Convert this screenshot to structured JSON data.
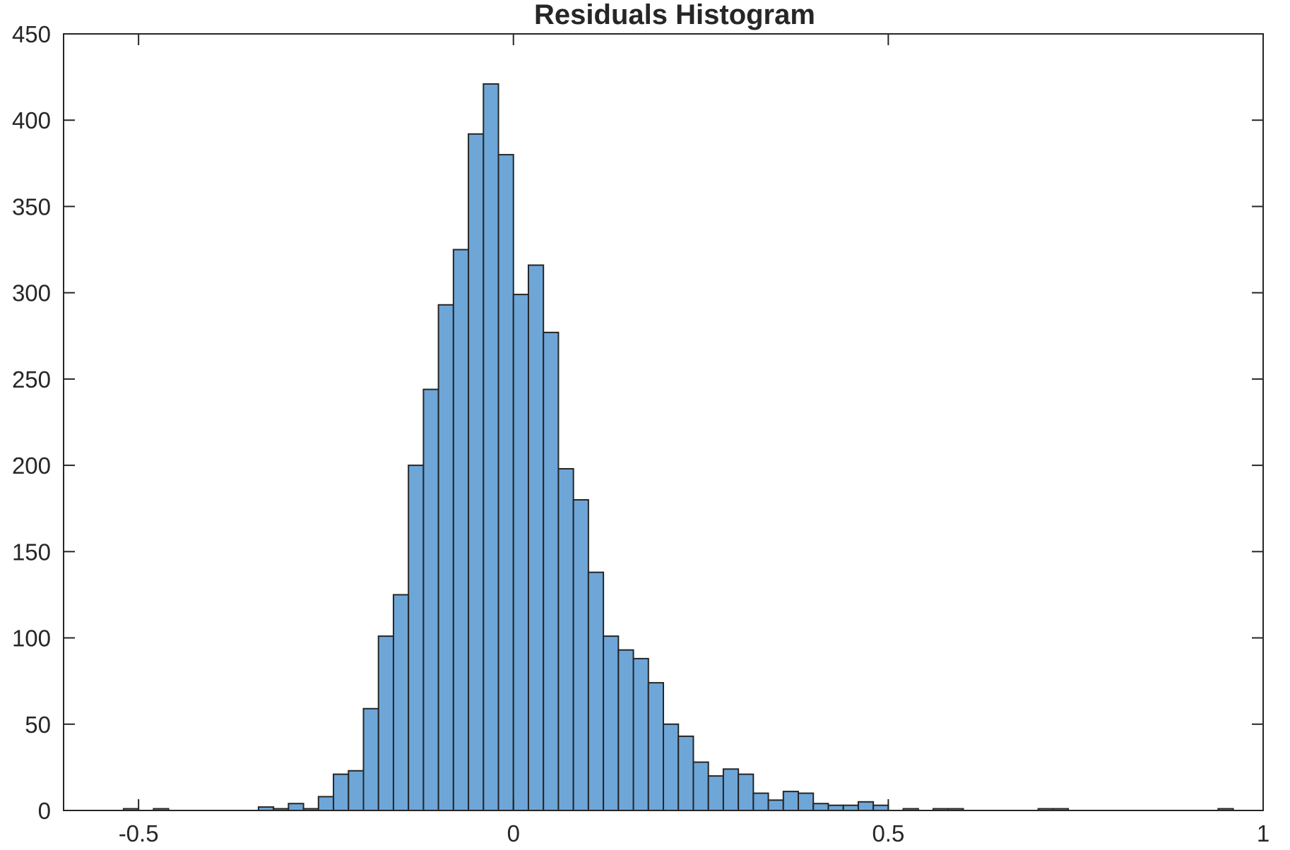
{
  "chart_data": {
    "type": "bar",
    "title": "Residuals Histogram",
    "xlabel": "",
    "ylabel": "",
    "xlim": [
      -0.6,
      1.0
    ],
    "ylim": [
      0,
      450
    ],
    "xticks": [
      -0.5,
      0,
      0.5,
      1
    ],
    "xtick_labels": [
      "-0.5",
      "0",
      "0.5",
      "1"
    ],
    "yticks": [
      0,
      50,
      100,
      150,
      200,
      250,
      300,
      350,
      400,
      450
    ],
    "ytick_labels": [
      "0",
      "50",
      "100",
      "150",
      "200",
      "250",
      "300",
      "350",
      "400",
      "450"
    ],
    "grid": false,
    "bar_color": "#6ea6d8",
    "edge_color": "#262626",
    "bin_width": 0.02,
    "bins": [
      {
        "x0": -0.52,
        "count": 1
      },
      {
        "x0": -0.48,
        "count": 1
      },
      {
        "x0": -0.34,
        "count": 2
      },
      {
        "x0": -0.32,
        "count": 1
      },
      {
        "x0": -0.3,
        "count": 4
      },
      {
        "x0": -0.28,
        "count": 1
      },
      {
        "x0": -0.26,
        "count": 8
      },
      {
        "x0": -0.24,
        "count": 21
      },
      {
        "x0": -0.22,
        "count": 23
      },
      {
        "x0": -0.2,
        "count": 59
      },
      {
        "x0": -0.18,
        "count": 101
      },
      {
        "x0": -0.16,
        "count": 125
      },
      {
        "x0": -0.14,
        "count": 200
      },
      {
        "x0": -0.12,
        "count": 244
      },
      {
        "x0": -0.1,
        "count": 293
      },
      {
        "x0": -0.08,
        "count": 325
      },
      {
        "x0": -0.06,
        "count": 392
      },
      {
        "x0": -0.04,
        "count": 421
      },
      {
        "x0": -0.02,
        "count": 380
      },
      {
        "x0": 0.0,
        "count": 299
      },
      {
        "x0": 0.02,
        "count": 316
      },
      {
        "x0": 0.04,
        "count": 277
      },
      {
        "x0": 0.06,
        "count": 198
      },
      {
        "x0": 0.08,
        "count": 180
      },
      {
        "x0": 0.1,
        "count": 138
      },
      {
        "x0": 0.12,
        "count": 101
      },
      {
        "x0": 0.14,
        "count": 93
      },
      {
        "x0": 0.16,
        "count": 88
      },
      {
        "x0": 0.18,
        "count": 74
      },
      {
        "x0": 0.2,
        "count": 50
      },
      {
        "x0": 0.22,
        "count": 43
      },
      {
        "x0": 0.24,
        "count": 28
      },
      {
        "x0": 0.26,
        "count": 20
      },
      {
        "x0": 0.28,
        "count": 24
      },
      {
        "x0": 0.3,
        "count": 21
      },
      {
        "x0": 0.32,
        "count": 10
      },
      {
        "x0": 0.34,
        "count": 6
      },
      {
        "x0": 0.36,
        "count": 11
      },
      {
        "x0": 0.38,
        "count": 10
      },
      {
        "x0": 0.4,
        "count": 4
      },
      {
        "x0": 0.42,
        "count": 3
      },
      {
        "x0": 0.44,
        "count": 3
      },
      {
        "x0": 0.46,
        "count": 5
      },
      {
        "x0": 0.48,
        "count": 3
      },
      {
        "x0": 0.52,
        "count": 1
      },
      {
        "x0": 0.56,
        "count": 1
      },
      {
        "x0": 0.58,
        "count": 1
      },
      {
        "x0": 0.7,
        "count": 1
      },
      {
        "x0": 0.72,
        "count": 1
      },
      {
        "x0": 0.94,
        "count": 1
      }
    ]
  }
}
